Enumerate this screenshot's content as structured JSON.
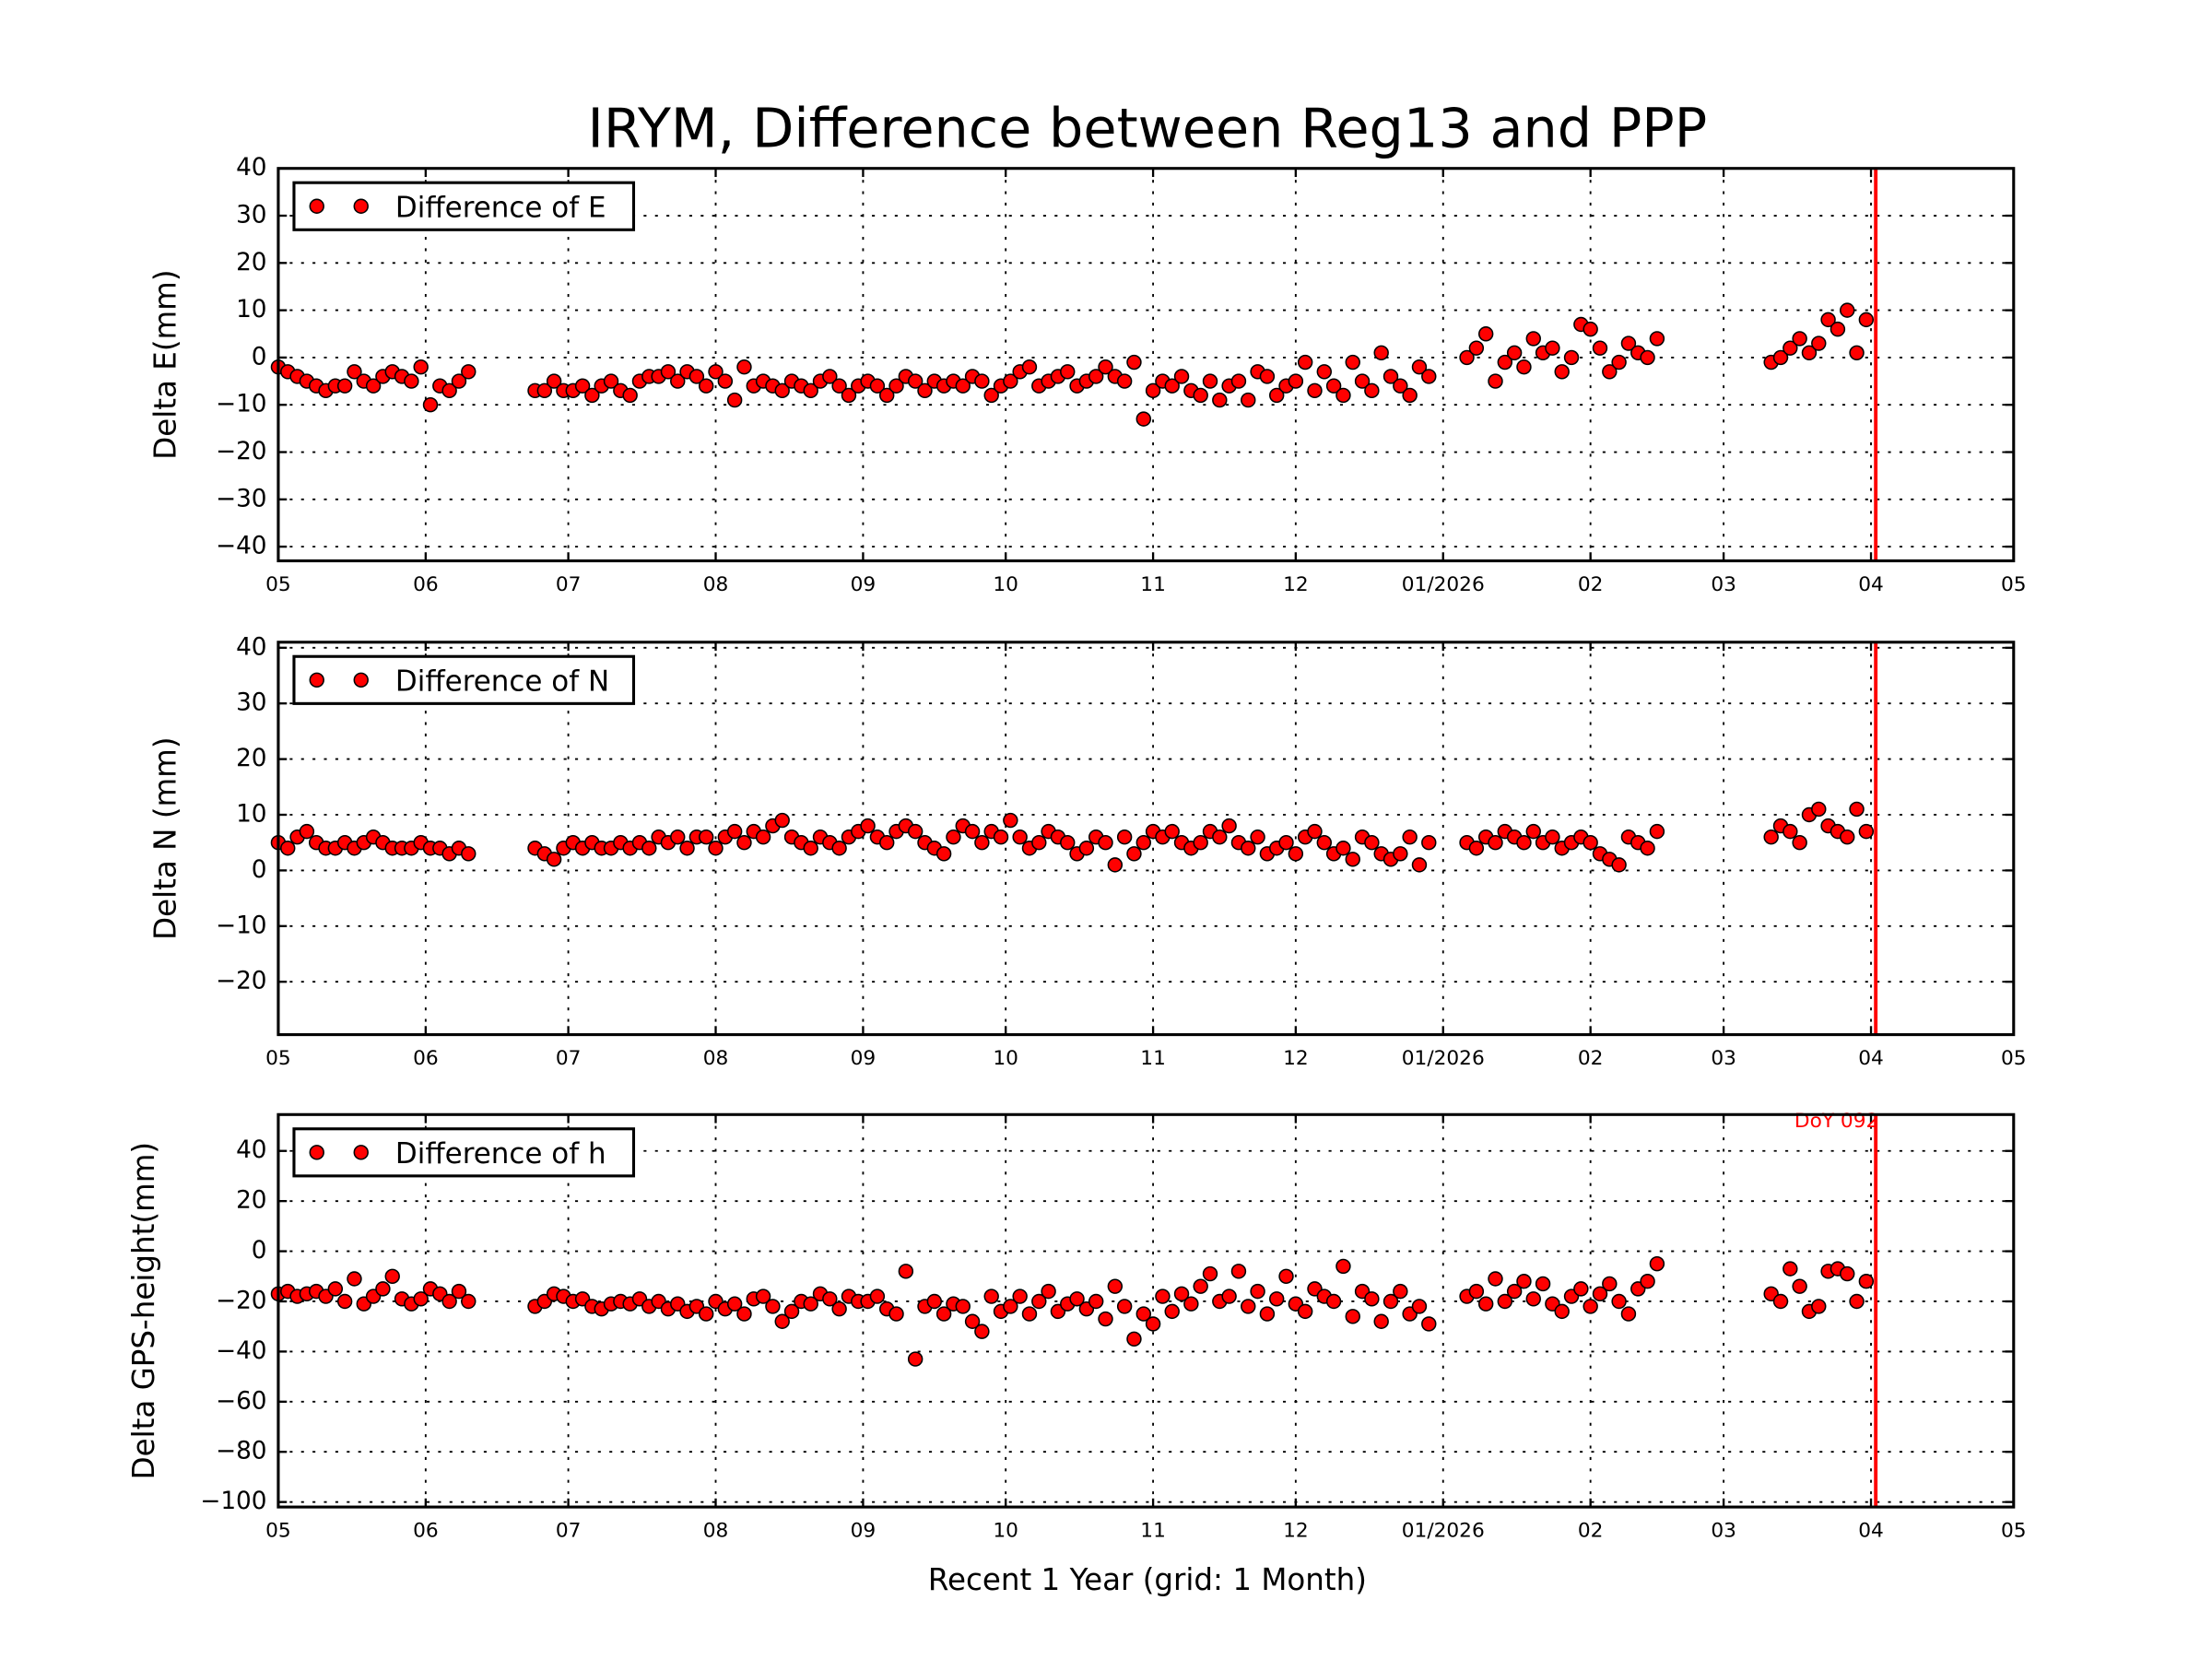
{
  "chart_data": {
    "type": "scatter",
    "title": "IRYM, Difference between Reg13 and PPP",
    "xlabel": "Recent 1 Year (grid: 1 Month)",
    "xlim": [
      "2025-05-01",
      "2026-05-01"
    ],
    "x_tick_dates": [
      "2025-05-01",
      "2025-06-01",
      "2025-07-01",
      "2025-08-01",
      "2025-09-01",
      "2025-10-01",
      "2025-11-01",
      "2025-12-01",
      "2026-01-01",
      "2026-02-01",
      "2026-03-01",
      "2026-04-01",
      "2026-05-01"
    ],
    "x_tick_labels": [
      "05",
      "06",
      "07",
      "08",
      "09",
      "10",
      "11",
      "12",
      "01/2026",
      "02",
      "03",
      "04",
      "05"
    ],
    "grid": true,
    "marker_color": "#ff0000",
    "reference_line": {
      "date": "2026-04-02",
      "label": "DoY 092",
      "color": "#ff0000"
    },
    "dates": [
      "2025-05-01",
      "2025-05-03",
      "2025-05-05",
      "2025-05-07",
      "2025-05-09",
      "2025-05-11",
      "2025-05-13",
      "2025-05-15",
      "2025-05-17",
      "2025-05-19",
      "2025-05-21",
      "2025-05-23",
      "2025-05-25",
      "2025-05-27",
      "2025-05-29",
      "2025-05-31",
      "2025-06-02",
      "2025-06-04",
      "2025-06-06",
      "2025-06-08",
      "2025-06-10",
      "2025-06-24",
      "2025-06-26",
      "2025-06-28",
      "2025-06-30",
      "2025-07-02",
      "2025-07-04",
      "2025-07-06",
      "2025-07-08",
      "2025-07-10",
      "2025-07-12",
      "2025-07-14",
      "2025-07-16",
      "2025-07-18",
      "2025-07-20",
      "2025-07-22",
      "2025-07-24",
      "2025-07-26",
      "2025-07-28",
      "2025-07-30",
      "2025-08-01",
      "2025-08-03",
      "2025-08-05",
      "2025-08-07",
      "2025-08-09",
      "2025-08-11",
      "2025-08-13",
      "2025-08-15",
      "2025-08-17",
      "2025-08-19",
      "2025-08-21",
      "2025-08-23",
      "2025-08-25",
      "2025-08-27",
      "2025-08-29",
      "2025-08-31",
      "2025-09-02",
      "2025-09-04",
      "2025-09-06",
      "2025-09-08",
      "2025-09-10",
      "2025-09-12",
      "2025-09-14",
      "2025-09-16",
      "2025-09-18",
      "2025-09-20",
      "2025-09-22",
      "2025-09-24",
      "2025-09-26",
      "2025-09-28",
      "2025-09-30",
      "2025-10-02",
      "2025-10-04",
      "2025-10-06",
      "2025-10-08",
      "2025-10-10",
      "2025-10-12",
      "2025-10-14",
      "2025-10-16",
      "2025-10-18",
      "2025-10-20",
      "2025-10-22",
      "2025-10-24",
      "2025-10-26",
      "2025-10-28",
      "2025-10-30",
      "2025-11-01",
      "2025-11-03",
      "2025-11-05",
      "2025-11-07",
      "2025-11-09",
      "2025-11-11",
      "2025-11-13",
      "2025-11-15",
      "2025-11-17",
      "2025-11-19",
      "2025-11-21",
      "2025-11-23",
      "2025-11-25",
      "2025-11-27",
      "2025-11-29",
      "2025-12-01",
      "2025-12-03",
      "2025-12-05",
      "2025-12-07",
      "2025-12-09",
      "2025-12-11",
      "2025-12-13",
      "2025-12-15",
      "2025-12-17",
      "2025-12-19",
      "2025-12-21",
      "2025-12-23",
      "2025-12-25",
      "2025-12-27",
      "2025-12-29",
      "2026-01-06",
      "2026-01-08",
      "2026-01-10",
      "2026-01-12",
      "2026-01-14",
      "2026-01-16",
      "2026-01-18",
      "2026-01-20",
      "2026-01-22",
      "2026-01-24",
      "2026-01-26",
      "2026-01-28",
      "2026-01-30",
      "2026-02-01",
      "2026-02-03",
      "2026-02-05",
      "2026-02-07",
      "2026-02-09",
      "2026-02-11",
      "2026-02-13",
      "2026-02-15",
      "2026-03-11",
      "2026-03-13",
      "2026-03-15",
      "2026-03-17",
      "2026-03-19",
      "2026-03-21",
      "2026-03-23",
      "2026-03-25",
      "2026-03-27",
      "2026-03-29",
      "2026-03-31"
    ],
    "panels": [
      {
        "ylabel": "Delta E(mm)",
        "legend": "Difference of E",
        "legend_position": "upper-left",
        "ylim": [
          -43,
          40
        ],
        "y_ticks": [
          40,
          30,
          20,
          10,
          0,
          -10,
          -20,
          -30,
          -40
        ],
        "y_tick_labels": [
          "40",
          "30",
          "20",
          "10",
          "0",
          "−10",
          "−20",
          "−30",
          "−40"
        ],
        "values": [
          -2,
          -3,
          -4,
          -5,
          -6,
          -7,
          -6,
          -6,
          -3,
          -5,
          -6,
          -4,
          -3,
          -4,
          -5,
          -2,
          -10,
          -6,
          -7,
          -5,
          -3,
          -7,
          -7,
          -5,
          -7,
          -7,
          -6,
          -8,
          -6,
          -5,
          -7,
          -8,
          -5,
          -4,
          -4,
          -3,
          -5,
          -3,
          -4,
          -6,
          -3,
          -5,
          -9,
          -2,
          -6,
          -5,
          -6,
          -7,
          -5,
          -6,
          -7,
          -5,
          -4,
          -6,
          -8,
          -6,
          -5,
          -6,
          -8,
          -6,
          -4,
          -5,
          -7,
          -5,
          -6,
          -5,
          -6,
          -4,
          -5,
          -8,
          -6,
          -5,
          -3,
          -2,
          -6,
          -5,
          -4,
          -3,
          -6,
          -5,
          -4,
          -2,
          -4,
          -5,
          -1,
          -13,
          -7,
          -5,
          -6,
          -4,
          -7,
          -8,
          -5,
          -9,
          -6,
          -5,
          -9,
          -3,
          -4,
          -8,
          -6,
          -5,
          -1,
          -7,
          -3,
          -6,
          -8,
          -1,
          -5,
          -7,
          1,
          -4,
          -6,
          -8,
          -2,
          -4,
          0,
          2,
          5,
          -5,
          -1,
          1,
          -2,
          4,
          1,
          2,
          -3,
          0,
          7,
          6,
          2,
          -3,
          -1,
          3,
          1,
          0,
          4,
          -1,
          0,
          2,
          4,
          1,
          3,
          8,
          6,
          10,
          1,
          8
        ]
      },
      {
        "ylabel": "Delta N (mm)",
        "legend": "Difference of N",
        "legend_position": "upper-left",
        "ylim": [
          -29.5,
          41
        ],
        "y_ticks": [
          40,
          30,
          20,
          10,
          0,
          -10,
          -20
        ],
        "y_tick_labels": [
          "40",
          "30",
          "20",
          "10",
          "0",
          "−10",
          "−20"
        ],
        "values": [
          5,
          4,
          6,
          7,
          5,
          4,
          4,
          5,
          4,
          5,
          6,
          5,
          4,
          4,
          4,
          5,
          4,
          4,
          3,
          4,
          3,
          4,
          3,
          2,
          4,
          5,
          4,
          5,
          4,
          4,
          5,
          4,
          5,
          4,
          6,
          5,
          6,
          4,
          6,
          6,
          4,
          6,
          7,
          5,
          7,
          6,
          8,
          9,
          6,
          5,
          4,
          6,
          5,
          4,
          6,
          7,
          8,
          6,
          5,
          7,
          8,
          7,
          5,
          4,
          3,
          6,
          8,
          7,
          5,
          7,
          6,
          9,
          6,
          4,
          5,
          7,
          6,
          5,
          3,
          4,
          6,
          5,
          1,
          6,
          3,
          5,
          7,
          6,
          7,
          5,
          4,
          5,
          7,
          6,
          8,
          5,
          4,
          6,
          3,
          4,
          5,
          3,
          6,
          7,
          5,
          3,
          4,
          2,
          6,
          5,
          3,
          2,
          3,
          6,
          1,
          5,
          5,
          4,
          6,
          5,
          7,
          6,
          5,
          7,
          5,
          6,
          4,
          5,
          6,
          5,
          3,
          2,
          1,
          6,
          5,
          4,
          7,
          6,
          8,
          7,
          5,
          10,
          11,
          8,
          7,
          6,
          11,
          7
        ]
      },
      {
        "ylabel": "Delta GPS-height(mm)",
        "legend": "Difference of h",
        "legend_position": "upper-left",
        "ylim": [
          -102,
          54.5
        ],
        "y_ticks": [
          40,
          20,
          0,
          -20,
          -40,
          -60,
          -80,
          -100
        ],
        "y_tick_labels": [
          "40",
          "20",
          "0",
          "−20",
          "−40",
          "−60",
          "−80",
          "−100"
        ],
        "values": [
          -17,
          -16,
          -18,
          -17,
          -16,
          -18,
          -15,
          -20,
          -11,
          -21,
          -18,
          -15,
          -10,
          -19,
          -21,
          -19,
          -15,
          -17,
          -20,
          -16,
          -20,
          -22,
          -20,
          -17,
          -18,
          -20,
          -19,
          -22,
          -23,
          -21,
          -20,
          -21,
          -19,
          -22,
          -20,
          -23,
          -21,
          -24,
          -22,
          -25,
          -20,
          -23,
          -21,
          -25,
          -19,
          -18,
          -22,
          -28,
          -24,
          -20,
          -21,
          -17,
          -19,
          -23,
          -18,
          -20,
          -20,
          -18,
          -23,
          -25,
          -8,
          -43,
          -22,
          -20,
          -25,
          -21,
          -22,
          -28,
          -32,
          -18,
          -24,
          -22,
          -18,
          -25,
          -20,
          -16,
          -24,
          -21,
          -19,
          -23,
          -20,
          -27,
          -14,
          -22,
          -35,
          -25,
          -29,
          -18,
          -24,
          -17,
          -21,
          -14,
          -9,
          -20,
          -18,
          -8,
          -22,
          -16,
          -25,
          -19,
          -10,
          -21,
          -24,
          -15,
          -18,
          -20,
          -6,
          -26,
          -16,
          -19,
          -28,
          -20,
          -16,
          -25,
          -22,
          -29,
          -18,
          -16,
          -21,
          -11,
          -20,
          -16,
          -12,
          -19,
          -13,
          -21,
          -24,
          -18,
          -15,
          -22,
          -17,
          -13,
          -20,
          -25,
          -15,
          -12,
          -5,
          -17,
          -20,
          -7,
          -14,
          -24,
          -22,
          -8,
          -7,
          -9,
          -20,
          -12
        ]
      }
    ]
  }
}
